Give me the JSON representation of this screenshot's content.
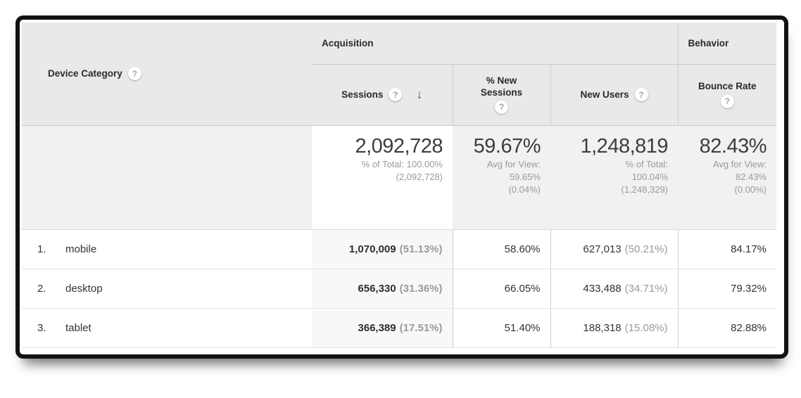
{
  "icons": {
    "help_glyph": "?",
    "sort_desc_glyph": "↓"
  },
  "table": {
    "dimension_header": {
      "label": "Device Category"
    },
    "groups": {
      "acquisition": "Acquisition",
      "behavior": "Behavior"
    },
    "columns": {
      "sessions": "Sessions",
      "new_sessions_line1": "% New",
      "new_sessions_line2": "Sessions",
      "new_users": "New Users",
      "bounce_rate": "Bounce Rate"
    },
    "summary": {
      "sessions": {
        "value": "2,092,728",
        "sub1": "% of Total: 100.00%",
        "sub2": "(2,092,728)"
      },
      "new_sessions": {
        "value": "59.67%",
        "sub1": "Avg for View:",
        "sub2": "59.65%",
        "sub3": "(0.04%)"
      },
      "new_users": {
        "value": "1,248,819",
        "sub1": "% of Total:",
        "sub2": "100.04%",
        "sub3": "(1,248,329)"
      },
      "bounce_rate": {
        "value": "82.43%",
        "sub1": "Avg for View:",
        "sub2": "82.43%",
        "sub3": "(0.00%)"
      }
    },
    "rows": [
      {
        "index": "1.",
        "device": "mobile",
        "sessions": "1,070,009",
        "sessions_pct": "(51.13%)",
        "new_sessions": "58.60%",
        "new_users": "627,013",
        "new_users_pct": "(50.21%)",
        "bounce_rate": "84.17%"
      },
      {
        "index": "2.",
        "device": "desktop",
        "sessions": "656,330",
        "sessions_pct": "(31.36%)",
        "new_sessions": "66.05%",
        "new_users": "433,488",
        "new_users_pct": "(34.71%)",
        "bounce_rate": "79.32%"
      },
      {
        "index": "3.",
        "device": "tablet",
        "sessions": "366,389",
        "sessions_pct": "(17.51%)",
        "new_sessions": "51.40%",
        "new_users": "188,318",
        "new_users_pct": "(15.08%)",
        "bounce_rate": "82.88%"
      }
    ]
  },
  "colors": {
    "header_bg": "#e9e9e9",
    "summary_bg": "#f1f1f1",
    "sorted_col_bg": "#f8f8f8",
    "frame_border": "#121212",
    "muted_text": "#9a9a9a"
  }
}
